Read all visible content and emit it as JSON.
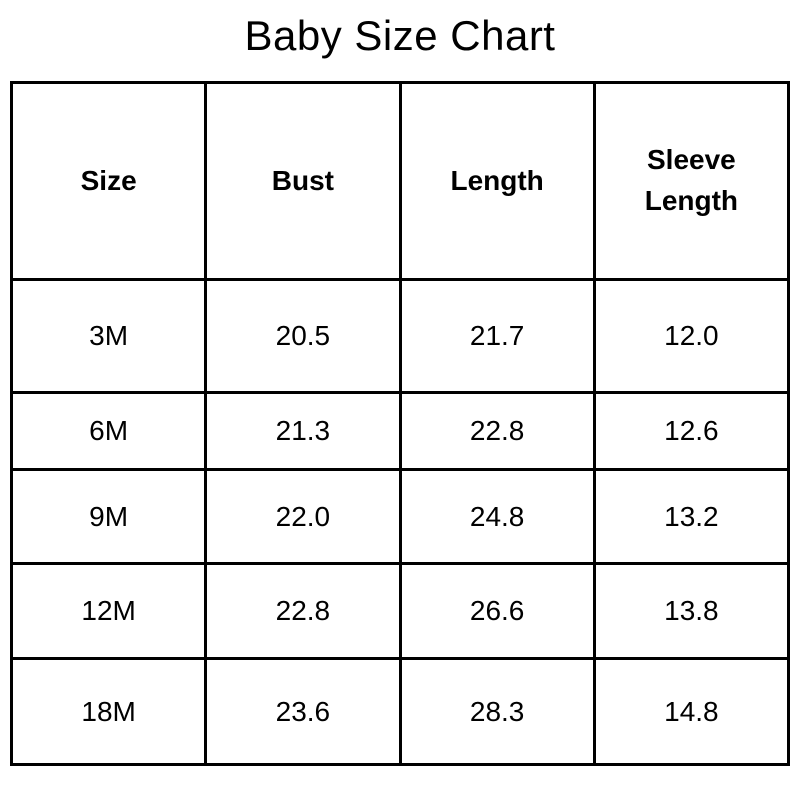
{
  "chart_data": {
    "type": "table",
    "title": "Baby Size Chart",
    "columns": [
      "Size",
      "Bust",
      "Length",
      "Sleeve Length"
    ],
    "rows": [
      [
        "3M",
        "20.5",
        "21.7",
        "12.0"
      ],
      [
        "6M",
        "21.3",
        "22.8",
        "12.6"
      ],
      [
        "9M",
        "22.0",
        "24.8",
        "13.2"
      ],
      [
        "12M",
        "22.8",
        "26.6",
        "13.8"
      ],
      [
        "18M",
        "23.6",
        "28.3",
        "14.8"
      ]
    ],
    "layout_hints": {
      "grid": "on",
      "header_bold": true,
      "columns_equal_width": true
    }
  },
  "colors": {
    "background": "#ffffff",
    "border": "#000000",
    "text": "#000000"
  }
}
